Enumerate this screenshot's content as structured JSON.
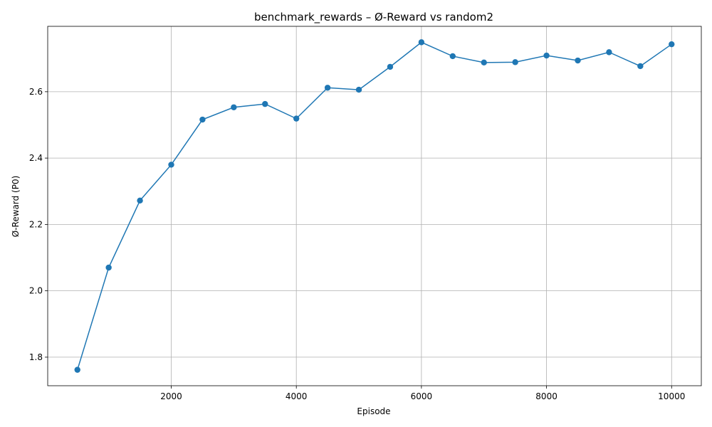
{
  "chart_data": {
    "type": "line",
    "title": "benchmark_rewards – Ø-Reward vs random2",
    "xlabel": "Episode",
    "ylabel": "Ø-Reward (P0)",
    "xlim": [
      25,
      10475
    ],
    "ylim": [
      1.714,
      2.797
    ],
    "xticks": [
      2000,
      4000,
      6000,
      8000,
      10000
    ],
    "xtick_labels": [
      "2000",
      "4000",
      "6000",
      "8000",
      "10000"
    ],
    "yticks": [
      1.8,
      2.0,
      2.2,
      2.4,
      2.6
    ],
    "ytick_labels": [
      "1.8",
      "2.0",
      "2.2",
      "2.4",
      "2.6"
    ],
    "grid": true,
    "color": "#1f77b4",
    "marker": "circle",
    "series": [
      {
        "x": [
          500,
          1000,
          1500,
          2000,
          2500,
          3000,
          3500,
          4000,
          4500,
          5000,
          5500,
          6000,
          6500,
          7000,
          7500,
          8000,
          8500,
          9000,
          9500,
          10000
        ],
        "y": [
          1.762,
          2.07,
          2.272,
          2.38,
          2.516,
          2.553,
          2.563,
          2.519,
          2.612,
          2.606,
          2.675,
          2.749,
          2.707,
          2.688,
          2.689,
          2.709,
          2.694,
          2.719,
          2.677,
          2.743
        ]
      }
    ]
  }
}
